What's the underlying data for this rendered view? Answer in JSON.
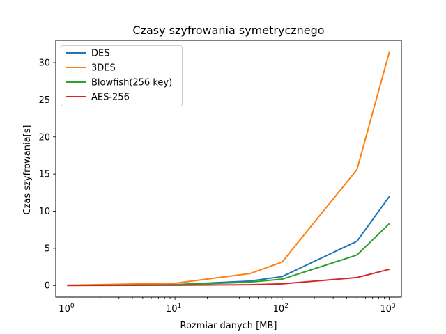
{
  "chart_data": {
    "type": "line",
    "title": "Czasy szyfrowania symetrycznego",
    "xlabel": "Rozmiar danych [MB]",
    "ylabel": "Czas szyfrowania[s]",
    "x_scale": "log",
    "xlim": [
      0.77,
      1300
    ],
    "ylim": [
      -1.57,
      33.0
    ],
    "grid": false,
    "legend_position": "top-left",
    "x_ticks": [
      {
        "value": 1,
        "base": "10",
        "exp": "0"
      },
      {
        "value": 10,
        "base": "10",
        "exp": "1"
      },
      {
        "value": 100,
        "base": "10",
        "exp": "2"
      },
      {
        "value": 1000,
        "base": "10",
        "exp": "3"
      }
    ],
    "y_ticks": [
      {
        "value": 0,
        "label": "0"
      },
      {
        "value": 5,
        "label": "5"
      },
      {
        "value": 10,
        "label": "10"
      },
      {
        "value": 15,
        "label": "15"
      },
      {
        "value": 20,
        "label": "20"
      },
      {
        "value": 25,
        "label": "25"
      },
      {
        "value": 30,
        "label": "30"
      }
    ],
    "x": [
      1,
      10,
      50,
      100,
      500,
      1000
    ],
    "series": [
      {
        "name": "DES",
        "color": "#1f77b4",
        "values": [
          0.02,
          0.12,
          0.6,
          1.2,
          5.95,
          11.95
        ]
      },
      {
        "name": "3DES",
        "color": "#ff7f0e",
        "values": [
          0.04,
          0.3,
          1.6,
          3.15,
          15.6,
          31.35
        ]
      },
      {
        "name": "Blowfish(256 key)",
        "color": "#2ca02c",
        "values": [
          0.02,
          0.09,
          0.45,
          0.85,
          4.1,
          8.3
        ]
      },
      {
        "name": "AES-256",
        "color": "#d62728",
        "values": [
          0.005,
          0.03,
          0.1,
          0.22,
          1.07,
          2.17
        ]
      }
    ]
  }
}
